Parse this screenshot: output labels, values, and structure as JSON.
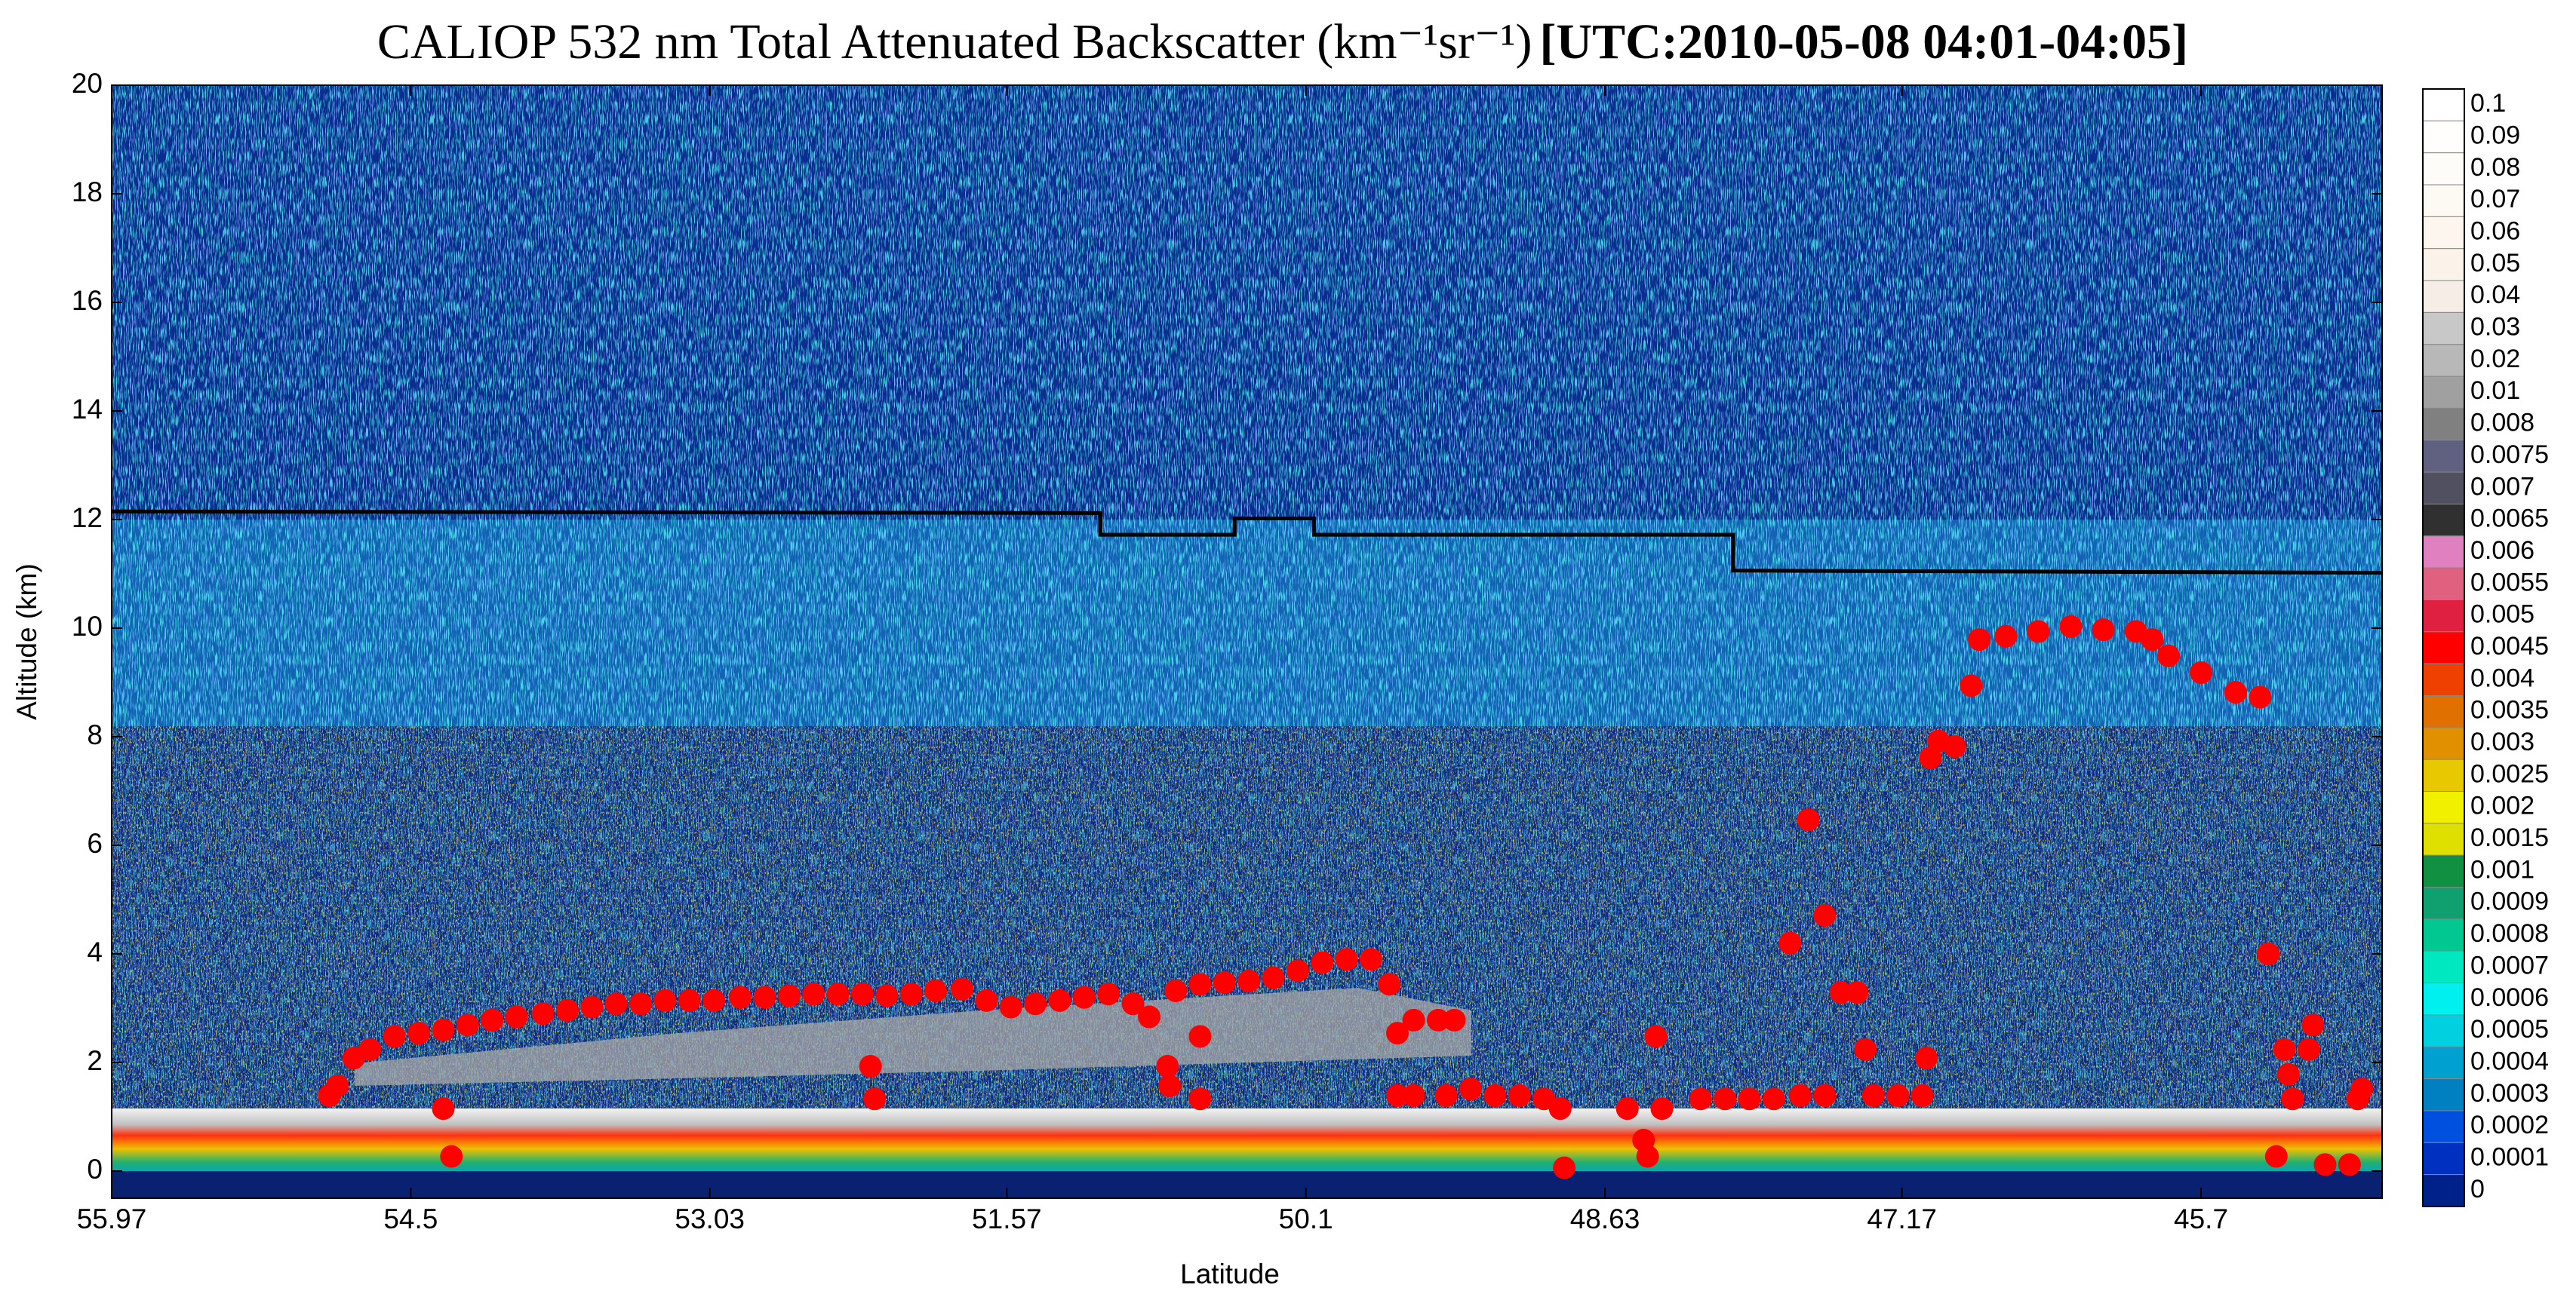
{
  "chart_data": {
    "type": "scatter",
    "title": "CALIOP 532 nm Total Attenuated Backscatter (km⁻¹sr⁻¹)",
    "time_label": "[UTC:2010-05-08 04:01-04:05]",
    "x_label": "Latitude",
    "y_label": "Altitude (km)",
    "xlim": [
      55.97,
      44.81
    ],
    "xticks": [
      55.97,
      54.5,
      53.03,
      51.57,
      50.1,
      48.63,
      47.17,
      45.7
    ],
    "ylim": [
      -0.5,
      20
    ],
    "yticks": [
      0,
      2,
      4,
      6,
      8,
      10,
      12,
      14,
      16,
      18,
      20
    ],
    "series": [
      {
        "mode": "line",
        "color": "#000000",
        "x": [
          55.97,
          51.11,
          51.11,
          50.45,
          50.45,
          50.06,
          50.06,
          48.0,
          48.0,
          44.81
        ],
        "values": [
          12.15,
          12.12,
          11.72,
          11.72,
          12.02,
          12.02,
          11.72,
          11.72,
          11.06,
          11.02
        ]
      },
      {
        "mode": "markers",
        "color": "#ff0000",
        "x": [
          54.9,
          54.86,
          54.78,
          54.7,
          54.58,
          54.46,
          54.34,
          54.22,
          54.1,
          53.98,
          53.85,
          53.73,
          53.61,
          53.49,
          53.37,
          53.25,
          53.13,
          53.01,
          52.88,
          52.76,
          52.64,
          52.52,
          52.4,
          52.28,
          52.16,
          52.04,
          51.92,
          51.79,
          51.67,
          51.55,
          51.43,
          51.31,
          51.19,
          51.07,
          50.95,
          50.87,
          50.74,
          50.62,
          50.5,
          50.38,
          50.26,
          50.14,
          50.02,
          49.9,
          49.78,
          49.69,
          49.65,
          49.57,
          49.45,
          49.37,
          49.65,
          49.57,
          49.41,
          49.29,
          49.17,
          49.05,
          48.93,
          48.85,
          48.83,
          48.52,
          48.44,
          48.42,
          48.38,
          48.35,
          48.16,
          48.04,
          47.92,
          47.8,
          47.67,
          47.55,
          47.63,
          47.72,
          47.55,
          47.47,
          47.39,
          47.35,
          47.31,
          47.19,
          47.07,
          47.05,
          47.03,
          46.99,
          46.91,
          46.83,
          46.79,
          46.66,
          46.5,
          46.34,
          46.18,
          46.02,
          45.94,
          45.86,
          45.7,
          45.53,
          45.41,
          45.37,
          45.29,
          45.27,
          45.25,
          45.33,
          45.17,
          45.15,
          45.09,
          44.97,
          44.93,
          44.91,
          54.34,
          54.3,
          52.24,
          52.22,
          50.78,
          50.77,
          50.62,
          50.62
        ],
        "values": [
          1.39,
          1.57,
          2.08,
          2.24,
          2.48,
          2.54,
          2.6,
          2.69,
          2.78,
          2.84,
          2.9,
          2.96,
          3.02,
          3.08,
          3.08,
          3.14,
          3.14,
          3.14,
          3.2,
          3.2,
          3.23,
          3.26,
          3.26,
          3.26,
          3.23,
          3.26,
          3.32,
          3.35,
          3.14,
          3.02,
          3.08,
          3.14,
          3.2,
          3.26,
          3.08,
          2.84,
          3.32,
          3.44,
          3.47,
          3.5,
          3.56,
          3.69,
          3.84,
          3.9,
          3.9,
          3.44,
          2.54,
          2.78,
          2.78,
          2.78,
          1.39,
          1.39,
          1.39,
          1.51,
          1.39,
          1.39,
          1.33,
          1.15,
          0.06,
          1.15,
          0.57,
          0.27,
          2.48,
          1.15,
          1.33,
          1.33,
          1.33,
          1.33,
          1.39,
          1.39,
          6.47,
          4.2,
          4.71,
          3.29,
          3.29,
          2.24,
          1.39,
          1.39,
          1.39,
          2.08,
          7.61,
          7.92,
          7.82,
          8.94,
          9.79,
          9.85,
          9.94,
          10.03,
          9.97,
          9.94,
          9.79,
          9.49,
          9.18,
          8.82,
          8.73,
          4.0,
          2.24,
          1.78,
          1.33,
          0.27,
          2.24,
          2.69,
          0.12,
          0.12,
          1.33,
          1.51,
          1.15,
          0.27,
          1.93,
          1.33,
          1.93,
          1.57,
          2.48,
          1.33
        ]
      }
    ],
    "colorbar": {
      "ticks": [
        0.1,
        0.09,
        0.08,
        0.07,
        0.06,
        0.05,
        0.04,
        0.03,
        0.02,
        0.01,
        0.008,
        0.0075,
        0.007,
        0.0065,
        0.006,
        0.0055,
        0.005,
        0.0045,
        0.004,
        0.0035,
        0.003,
        0.0025,
        0.002,
        0.0015,
        0.001,
        0.0009,
        0.0008,
        0.0007,
        0.0006,
        0.0005,
        0.0004,
        0.0003,
        0.0002,
        0.0001,
        0
      ],
      "colors": [
        "#ffffff",
        "#fffefc",
        "#fefcf8",
        "#fdf9f3",
        "#fcf6ee",
        "#fbf3e9",
        "#f6eee6",
        "#c8c8c8",
        "#b8b8b8",
        "#a0a0a0",
        "#808080",
        "#606080",
        "#505060",
        "#303030",
        "#e080c0",
        "#e06080",
        "#e02040",
        "#ff0000",
        "#f04000",
        "#e07000",
        "#e09000",
        "#e8c800",
        "#f0f000",
        "#e0e000",
        "#109040",
        "#10a070",
        "#00c890",
        "#00e8c0",
        "#00f0f0",
        "#00d0e0",
        "#00a0d0",
        "#0080c0",
        "#0050e0",
        "#0030c0",
        "#00208a",
        "#001a6e"
      ]
    }
  }
}
